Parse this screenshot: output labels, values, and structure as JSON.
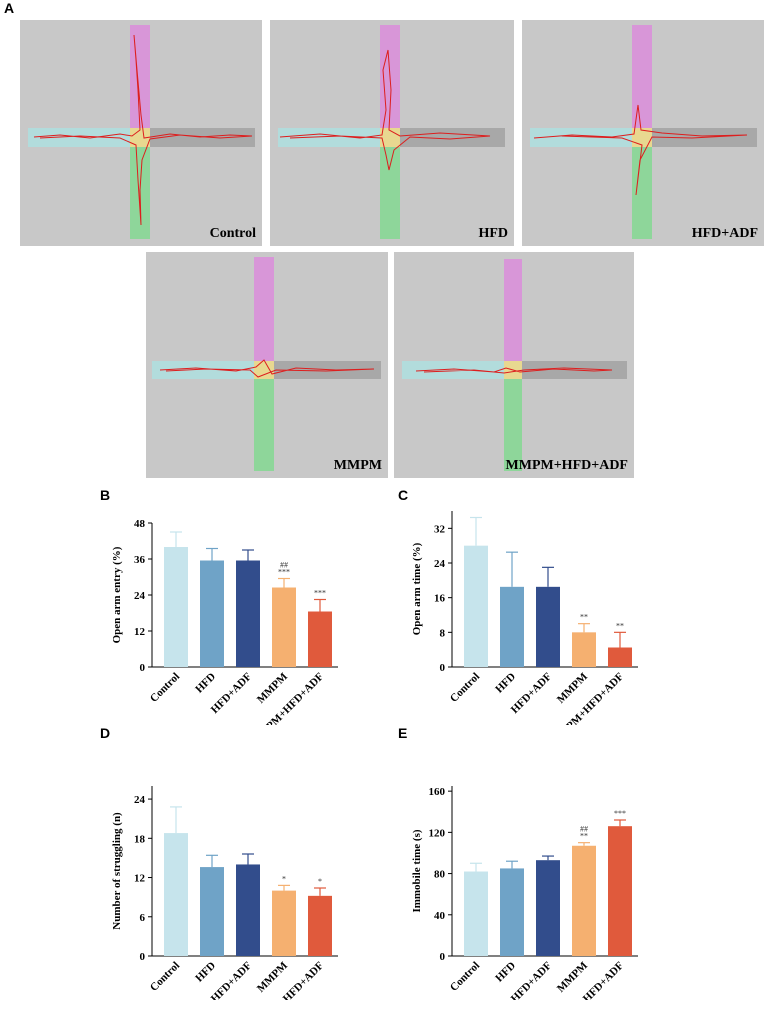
{
  "panel_labels": {
    "a": "A",
    "b": "B",
    "c": "C",
    "d": "D",
    "e": "E"
  },
  "mazes": [
    {
      "label": "Control"
    },
    {
      "label": "HFD"
    },
    {
      "label": "HFD+ADF"
    },
    {
      "label": "MMPM"
    },
    {
      "label": "MMPM+HFD+ADF"
    }
  ],
  "colors": {
    "maze_bg": "#c8c8c8",
    "open_top": "#d896d8",
    "open_bottom": "#8ed69a",
    "closed_left": "#b2dcdc",
    "closed_right": "#a8a8a8",
    "center": "#e8d890",
    "track": "#dd1e1e",
    "groups": [
      "#c6e4ec",
      "#6fa3c7",
      "#324d8c",
      "#f5b070",
      "#e05a3c"
    ],
    "errors": [
      "#c6e4ec",
      "#6fa3c7",
      "#324d8c",
      "#f5b070",
      "#e05a3c"
    ]
  },
  "chart_data": [
    {
      "panel": "B",
      "type": "bar",
      "categories": [
        "Control",
        "HFD",
        "HFD+ADF",
        "MMPM",
        "MMPM+HFD+ADF"
      ],
      "values": [
        40,
        35.5,
        35.5,
        26.5,
        18.5
      ],
      "errors": [
        5,
        4,
        3.5,
        3,
        4
      ],
      "annotations": [
        "",
        "",
        "",
        "##\n***",
        "***"
      ],
      "ylabel": "Open arm entry (%)",
      "ylim": [
        0,
        48
      ],
      "yticks": [
        0,
        12,
        24,
        36,
        48
      ]
    },
    {
      "panel": "C",
      "type": "bar",
      "categories": [
        "Control",
        "HFD",
        "HFD+ADF",
        "MMPM",
        "MMPM+HFD+ADF"
      ],
      "values": [
        28,
        18.5,
        18.5,
        8,
        4.5
      ],
      "errors": [
        6.5,
        8,
        4.5,
        2,
        3.5
      ],
      "annotations": [
        "",
        "",
        "",
        "**",
        "**"
      ],
      "ylabel": "Open arm time (%)",
      "ylim": [
        0,
        36
      ],
      "yticks": [
        0,
        8,
        16,
        24,
        32
      ]
    },
    {
      "panel": "D",
      "type": "bar",
      "categories": [
        "Control",
        "HFD",
        "HFD+ADF",
        "MMPM",
        "MMPM+HFD+ADF"
      ],
      "values": [
        18.8,
        13.6,
        14,
        10,
        9.2
      ],
      "errors": [
        4,
        1.8,
        1.6,
        0.8,
        1.2
      ],
      "annotations": [
        "",
        "",
        "",
        "*",
        "*"
      ],
      "ylabel": "Number of struggling (n)",
      "ylim": [
        0,
        26
      ],
      "yticks": [
        0,
        6,
        12,
        18,
        24
      ]
    },
    {
      "panel": "E",
      "type": "bar",
      "categories": [
        "Control",
        "HFD",
        "HFD+ADF",
        "MMPM",
        "MMPM+HFD+ADF"
      ],
      "values": [
        82,
        85,
        93,
        107,
        126
      ],
      "errors": [
        8,
        7,
        4,
        3,
        6
      ],
      "annotations": [
        "",
        "",
        "",
        "##\n**",
        "***"
      ],
      "ylabel": "Immobile time (s)",
      "ylim": [
        0,
        165
      ],
      "yticks": [
        0,
        40,
        80,
        120,
        160
      ]
    }
  ]
}
